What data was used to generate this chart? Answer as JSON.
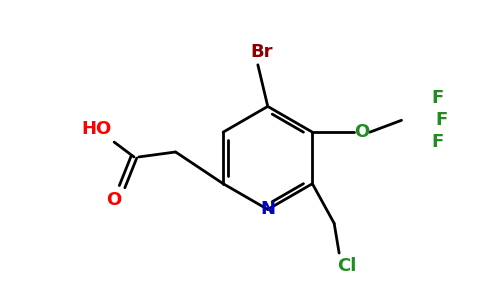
{
  "background_color": "#ffffff",
  "bond_color": "#000000",
  "atoms": {
    "N": {
      "color": "#0000cc",
      "label": "N"
    },
    "O_red": {
      "color": "#ff0000",
      "label": "O"
    },
    "O_green": {
      "color": "#228B22",
      "label": "O"
    },
    "Br": {
      "color": "#8B0000",
      "label": "Br"
    },
    "Cl": {
      "color": "#228B22",
      "label": "Cl"
    },
    "F": {
      "color": "#228B22",
      "label": "F"
    },
    "HO": {
      "color": "#ff0000",
      "label": "HO"
    }
  },
  "figsize": [
    4.84,
    3.0
  ],
  "dpi": 100
}
